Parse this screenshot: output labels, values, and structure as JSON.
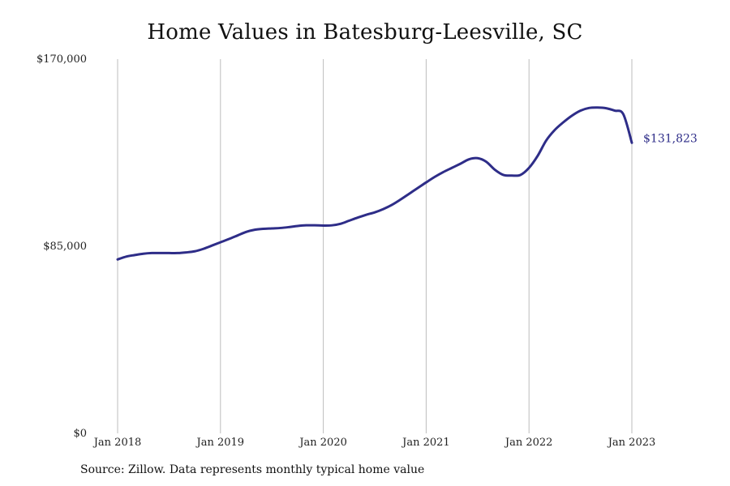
{
  "chart_data": {
    "type": "line",
    "title": "Home Values in Batesburg-Leesville, SC",
    "xlabel": "",
    "ylabel": "",
    "x_ticks": [
      "Jan 2018",
      "Jan 2019",
      "Jan 2020",
      "Jan 2021",
      "Jan 2022",
      "Jan 2023"
    ],
    "y_ticks": [
      "$0",
      "$85,000",
      "$170,000"
    ],
    "ylim": [
      0,
      170000
    ],
    "xlim": [
      "2018-01",
      "2023-01"
    ],
    "grid": "vertical lines at x ticks",
    "line_color": "#2e2d88",
    "end_label": "$131,823",
    "series": [
      {
        "x": [
          "2018-01",
          "2018-02",
          "2018-03",
          "2018-04",
          "2018-05",
          "2018-06",
          "2018-07",
          "2018-08",
          "2018-09",
          "2018-10",
          "2018-11",
          "2018-12",
          "2019-01",
          "2019-02",
          "2019-03",
          "2019-04",
          "2019-05",
          "2019-06",
          "2019-07",
          "2019-08",
          "2019-09",
          "2019-10",
          "2019-11",
          "2019-12",
          "2020-01",
          "2020-02",
          "2020-03",
          "2020-04",
          "2020-05",
          "2020-06",
          "2020-07",
          "2020-08",
          "2020-09",
          "2020-10",
          "2020-11",
          "2020-12",
          "2021-01",
          "2021-02",
          "2021-03",
          "2021-04",
          "2021-05",
          "2021-06",
          "2021-07",
          "2021-08",
          "2021-09",
          "2021-10",
          "2021-11",
          "2021-12",
          "2022-01",
          "2022-02",
          "2022-03",
          "2022-04",
          "2022-05",
          "2022-06",
          "2022-07",
          "2022-08",
          "2022-09",
          "2022-10",
          "2022-11",
          "2022-12",
          "2023-01"
        ],
        "values": [
          79000,
          80300,
          81000,
          81600,
          81900,
          81900,
          81900,
          81900,
          82200,
          82700,
          83800,
          85300,
          86800,
          88300,
          89900,
          91500,
          92500,
          92900,
          93100,
          93300,
          93700,
          94200,
          94500,
          94500,
          94400,
          94500,
          95200,
          96600,
          98000,
          99300,
          100400,
          101900,
          103800,
          106200,
          108800,
          111400,
          114000,
          116500,
          118700,
          120600,
          122500,
          124500,
          125000,
          123400,
          119800,
          117400,
          117100,
          117400,
          120600,
          126000,
          133000,
          137800,
          141300,
          144300,
          146600,
          147800,
          148000,
          147700,
          146600,
          145000,
          132000
        ]
      }
    ]
  },
  "source_note": "Source: Zillow. Data represents monthly typical home value"
}
